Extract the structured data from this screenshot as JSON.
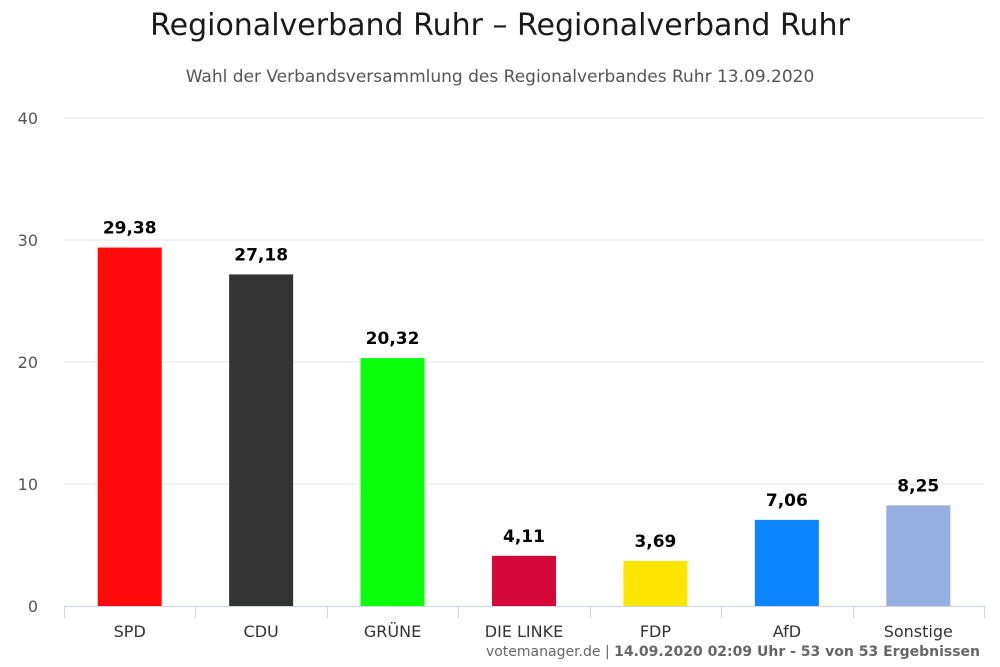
{
  "chart_data": {
    "type": "bar",
    "title": "Regionalverband Ruhr – Regionalverband Ruhr",
    "subtitle": "Wahl der Verbandsversammlung des Regionalverbandes Ruhr 13.09.2020",
    "categories": [
      "SPD",
      "CDU",
      "GRÜNE",
      "DIE LINKE",
      "FDP",
      "AfD",
      "Sonstige"
    ],
    "values": [
      29.38,
      27.18,
      20.32,
      4.11,
      3.69,
      7.06,
      8.25
    ],
    "value_labels": [
      "29,38",
      "27,18",
      "20,32",
      "4,11",
      "3,69",
      "7,06",
      "8,25"
    ],
    "colors": [
      "#ff0a0a",
      "#333333",
      "#0aff0a",
      "#d6083b",
      "#ffe600",
      "#0a85ff",
      "#97aee0"
    ],
    "ylim": [
      0,
      40
    ],
    "yticks": [
      "0",
      "10",
      "20",
      "30",
      "40"
    ],
    "grid": true,
    "xlabel": "",
    "ylabel": ""
  },
  "credit": {
    "source": "votemanager.de",
    "separator": " | ",
    "detail": "14.09.2020 02:09 Uhr - 53 von 53 Ergebnissen"
  }
}
